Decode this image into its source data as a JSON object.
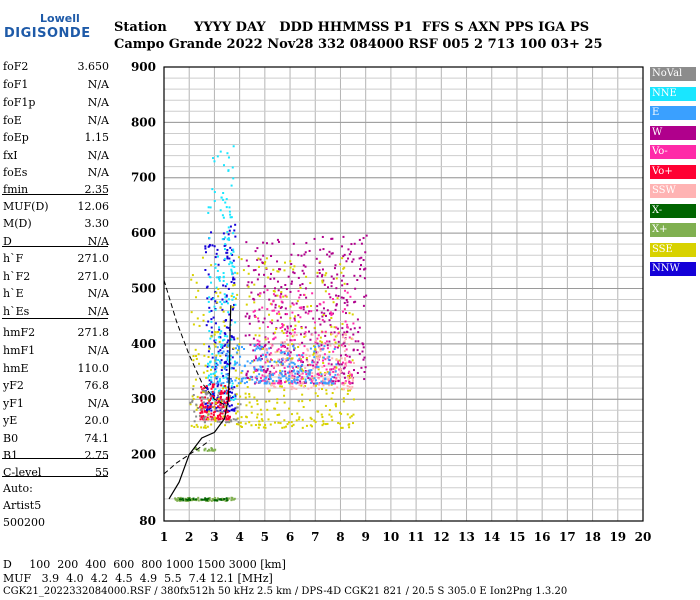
{
  "logo": {
    "brand_top": "Lowell",
    "brand_bottom": "DIGISONDE"
  },
  "header": {
    "line1": "Station      YYYY DAY   DDD HHMMSS P1  FFS S AXN PPS IGA PS",
    "line2": "Campo Grande 2022 Nov28 332 084000 RSF 005 2 713 100 03+ 25"
  },
  "params": [
    {
      "name": "foF2",
      "value": "3.650"
    },
    {
      "name": "foF1",
      "value": "N/A"
    },
    {
      "name": "foF1p",
      "value": "N/A"
    },
    {
      "name": "foE",
      "value": "N/A"
    },
    {
      "name": "foEp",
      "value": "1.15"
    },
    {
      "name": "fxI",
      "value": "N/A"
    },
    {
      "name": "foEs",
      "value": "N/A"
    },
    {
      "name": "fmin",
      "value": "2.35"
    },
    {
      "name": "MUF(D)",
      "value": "12.06"
    },
    {
      "name": "M(D)",
      "value": "3.30"
    },
    {
      "name": "D",
      "value": "N/A"
    },
    {
      "name": "h`F",
      "value": "271.0"
    },
    {
      "name": "h`F2",
      "value": "271.0"
    },
    {
      "name": "h`E",
      "value": "N/A"
    },
    {
      "name": "h`Es",
      "value": "N/A"
    },
    {
      "name": "hmF2",
      "value": "271.8"
    },
    {
      "name": "hmF1",
      "value": "N/A"
    },
    {
      "name": "hmE",
      "value": "110.0"
    },
    {
      "name": "yF2",
      "value": "76.8"
    },
    {
      "name": "yF1",
      "value": "N/A"
    },
    {
      "name": "yE",
      "value": "20.0"
    },
    {
      "name": "B0",
      "value": "74.1"
    },
    {
      "name": "B1",
      "value": "2.75"
    },
    {
      "name": "C-level",
      "value": "55"
    }
  ],
  "auto": {
    "line1": "Auto:",
    "line2": "Artist5",
    "line3": "500200"
  },
  "bottom": {
    "d_row": "D     100  200  400  600  800 1000 1500 3000 [km]",
    "muf_row": "MUF   3.9  4.0  4.2  4.5  4.9  5.5  7.4 12.1 [MHz]",
    "footer": "CGK21_2022332084000.RSF / 380fx512h 50 kHz 2.5 km / DPS-4D CGK21 821 / 20.5 S 305.0 E Ion2Png 1.3.20"
  },
  "chart_data": {
    "type": "scatter",
    "xlim": [
      1,
      20
    ],
    "ylim": [
      80,
      900
    ],
    "x_ticks": [
      1,
      2,
      3,
      4,
      5,
      6,
      7,
      8,
      9,
      10,
      11,
      12,
      13,
      14,
      15,
      16,
      17,
      18,
      19,
      20
    ],
    "y_ticks": [
      80,
      200,
      300,
      400,
      500,
      600,
      700,
      800,
      900
    ],
    "grid": true,
    "legend_position": "right",
    "legend": [
      {
        "name": "NoVal",
        "color": "#8c8c8c"
      },
      {
        "name": "NNE",
        "color": "#19e6ff"
      },
      {
        "name": "E",
        "color": "#3aa0ff"
      },
      {
        "name": "W",
        "color": "#b0008c"
      },
      {
        "name": "Vo-",
        "color": "#ff2aa8"
      },
      {
        "name": "Vo+",
        "color": "#ff0033"
      },
      {
        "name": "SSW",
        "color": "#ffb3b3"
      },
      {
        "name": "X-",
        "color": "#006400"
      },
      {
        "name": "X+",
        "color": "#80b050"
      },
      {
        "name": "SSE",
        "color": "#d8d200"
      },
      {
        "name": "NNW",
        "color": "#1400d8"
      }
    ],
    "clusters": [
      {
        "series": "NNW",
        "x": [
          2.6,
          3.8
        ],
        "y": [
          280,
          620
        ],
        "n": 220
      },
      {
        "series": "NNE",
        "x": [
          2.7,
          3.8
        ],
        "y": [
          300,
          760
        ],
        "n": 180
      },
      {
        "series": "Vo+",
        "x": [
          2.4,
          3.6
        ],
        "y": [
          265,
          330
        ],
        "n": 150
      },
      {
        "series": "W",
        "x": [
          4.2,
          9.0
        ],
        "y": [
          330,
          600
        ],
        "n": 420
      },
      {
        "series": "SSE",
        "x": [
          2.0,
          8.5
        ],
        "y": [
          250,
          560
        ],
        "n": 420
      },
      {
        "series": "Vo-",
        "x": [
          4.5,
          8.5
        ],
        "y": [
          330,
          500
        ],
        "n": 220
      },
      {
        "series": "SSW",
        "x": [
          5.0,
          8.5
        ],
        "y": [
          320,
          420
        ],
        "n": 150
      },
      {
        "series": "E",
        "x": [
          3.0,
          7.8
        ],
        "y": [
          330,
          400
        ],
        "n": 220
      },
      {
        "series": "NoVal",
        "x": [
          2.0,
          4.0
        ],
        "y": [
          260,
          320
        ],
        "n": 60
      },
      {
        "series": "X+",
        "x": [
          1.4,
          4.0
        ],
        "y": [
          118,
          124
        ],
        "n": 60
      },
      {
        "series": "X-",
        "x": [
          1.5,
          3.5
        ],
        "y": [
          119,
          123
        ],
        "n": 30
      },
      {
        "series": "X+",
        "x": [
          2.2,
          3.0
        ],
        "y": [
          208,
          214
        ],
        "n": 20
      }
    ],
    "profile_solid": [
      [
        1.2,
        120
      ],
      [
        1.6,
        150
      ],
      [
        2.0,
        200
      ],
      [
        2.5,
        230
      ],
      [
        3.0,
        240
      ],
      [
        3.4,
        265
      ],
      [
        3.55,
        300
      ],
      [
        3.6,
        350
      ],
      [
        3.62,
        430
      ],
      [
        3.65,
        470
      ]
    ],
    "profile_dashed_top": [
      [
        1.0,
        515
      ],
      [
        1.5,
        440
      ],
      [
        2.0,
        380
      ],
      [
        2.5,
        330
      ],
      [
        3.0,
        300
      ],
      [
        3.4,
        290
      ]
    ],
    "profile_dashed_bottom": [
      [
        1.0,
        165
      ],
      [
        1.5,
        185
      ],
      [
        2.0,
        200
      ],
      [
        2.5,
        215
      ],
      [
        2.8,
        225
      ]
    ]
  }
}
